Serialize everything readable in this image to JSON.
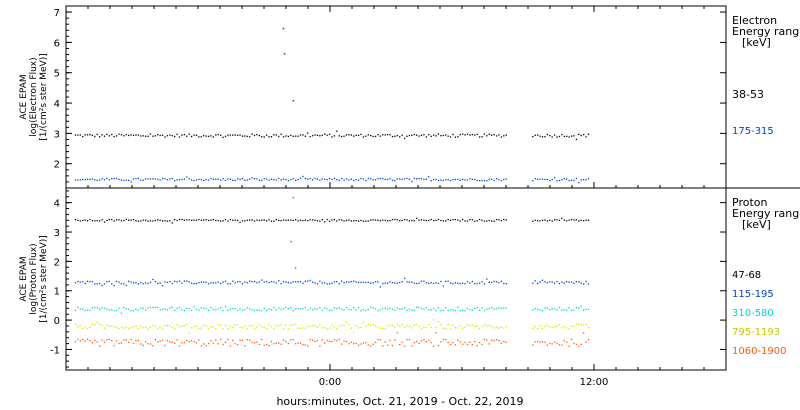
{
  "chart_data": [
    {
      "type": "scatter",
      "ylabel_lines": [
        "ACE EPAM",
        "log(Electron Flux)",
        "[1/(cm²s ster MeV)]"
      ],
      "y_ticks": [
        2,
        3,
        4,
        5,
        6,
        7
      ],
      "ylim": [
        1.2,
        7.2
      ],
      "legend_title": [
        "Electron",
        "Energy ranges",
        "[keV]"
      ],
      "series": [
        {
          "name": "38-53",
          "color": "#000000",
          "baseline": 2.95,
          "jitter": 0.05
        },
        {
          "name": "175-315",
          "color": "#0047c8",
          "baseline": 1.5,
          "jitter": 0.04
        }
      ],
      "annotations": [
        {
          "x": -2.15,
          "y": 6.48
        },
        {
          "x": -2.1,
          "y": 5.65
        },
        {
          "x": -1.7,
          "y": 4.1
        }
      ]
    },
    {
      "type": "scatter",
      "ylabel_lines": [
        "ACE EPAM",
        "log(Proton Flux)",
        "[1/(cm²s ster MeV)]"
      ],
      "y_ticks": [
        -1,
        0,
        1,
        2,
        3,
        4
      ],
      "ylim": [
        -1.7,
        4.5
      ],
      "legend_title": [
        "Proton",
        "Energy ranges",
        "[keV]"
      ],
      "series": [
        {
          "name": "47-68",
          "color": "#000000",
          "baseline": 3.42,
          "jitter": 0.03
        },
        {
          "name": "115-195",
          "color": "#0047c8",
          "baseline": 1.3,
          "jitter": 0.05
        },
        {
          "name": "310-580",
          "color": "#00d5d5",
          "baseline": 0.4,
          "jitter": 0.06
        },
        {
          "name": "795-1193",
          "color": "#e0e000",
          "baseline": -0.2,
          "jitter": 0.08
        },
        {
          "name": "1060-1900",
          "color": "#ff5a00",
          "baseline": -0.75,
          "jitter": 0.12
        }
      ],
      "annotations": [
        {
          "x": -1.7,
          "y": 4.2
        },
        {
          "x": -1.8,
          "y": 2.7
        },
        {
          "x": -1.6,
          "y": 1.8
        }
      ]
    }
  ],
  "x_axis": {
    "label": "hours:minutes, Oct. 21, 2019 - Oct. 22, 2019",
    "tick_labels": [
      {
        "value": 0,
        "text": "0:00"
      },
      {
        "value": 12,
        "text": "12:00"
      }
    ],
    "xlim": [
      -12,
      18
    ],
    "data_gap": [
      8.0,
      9.1
    ],
    "data_end": 11.8
  }
}
